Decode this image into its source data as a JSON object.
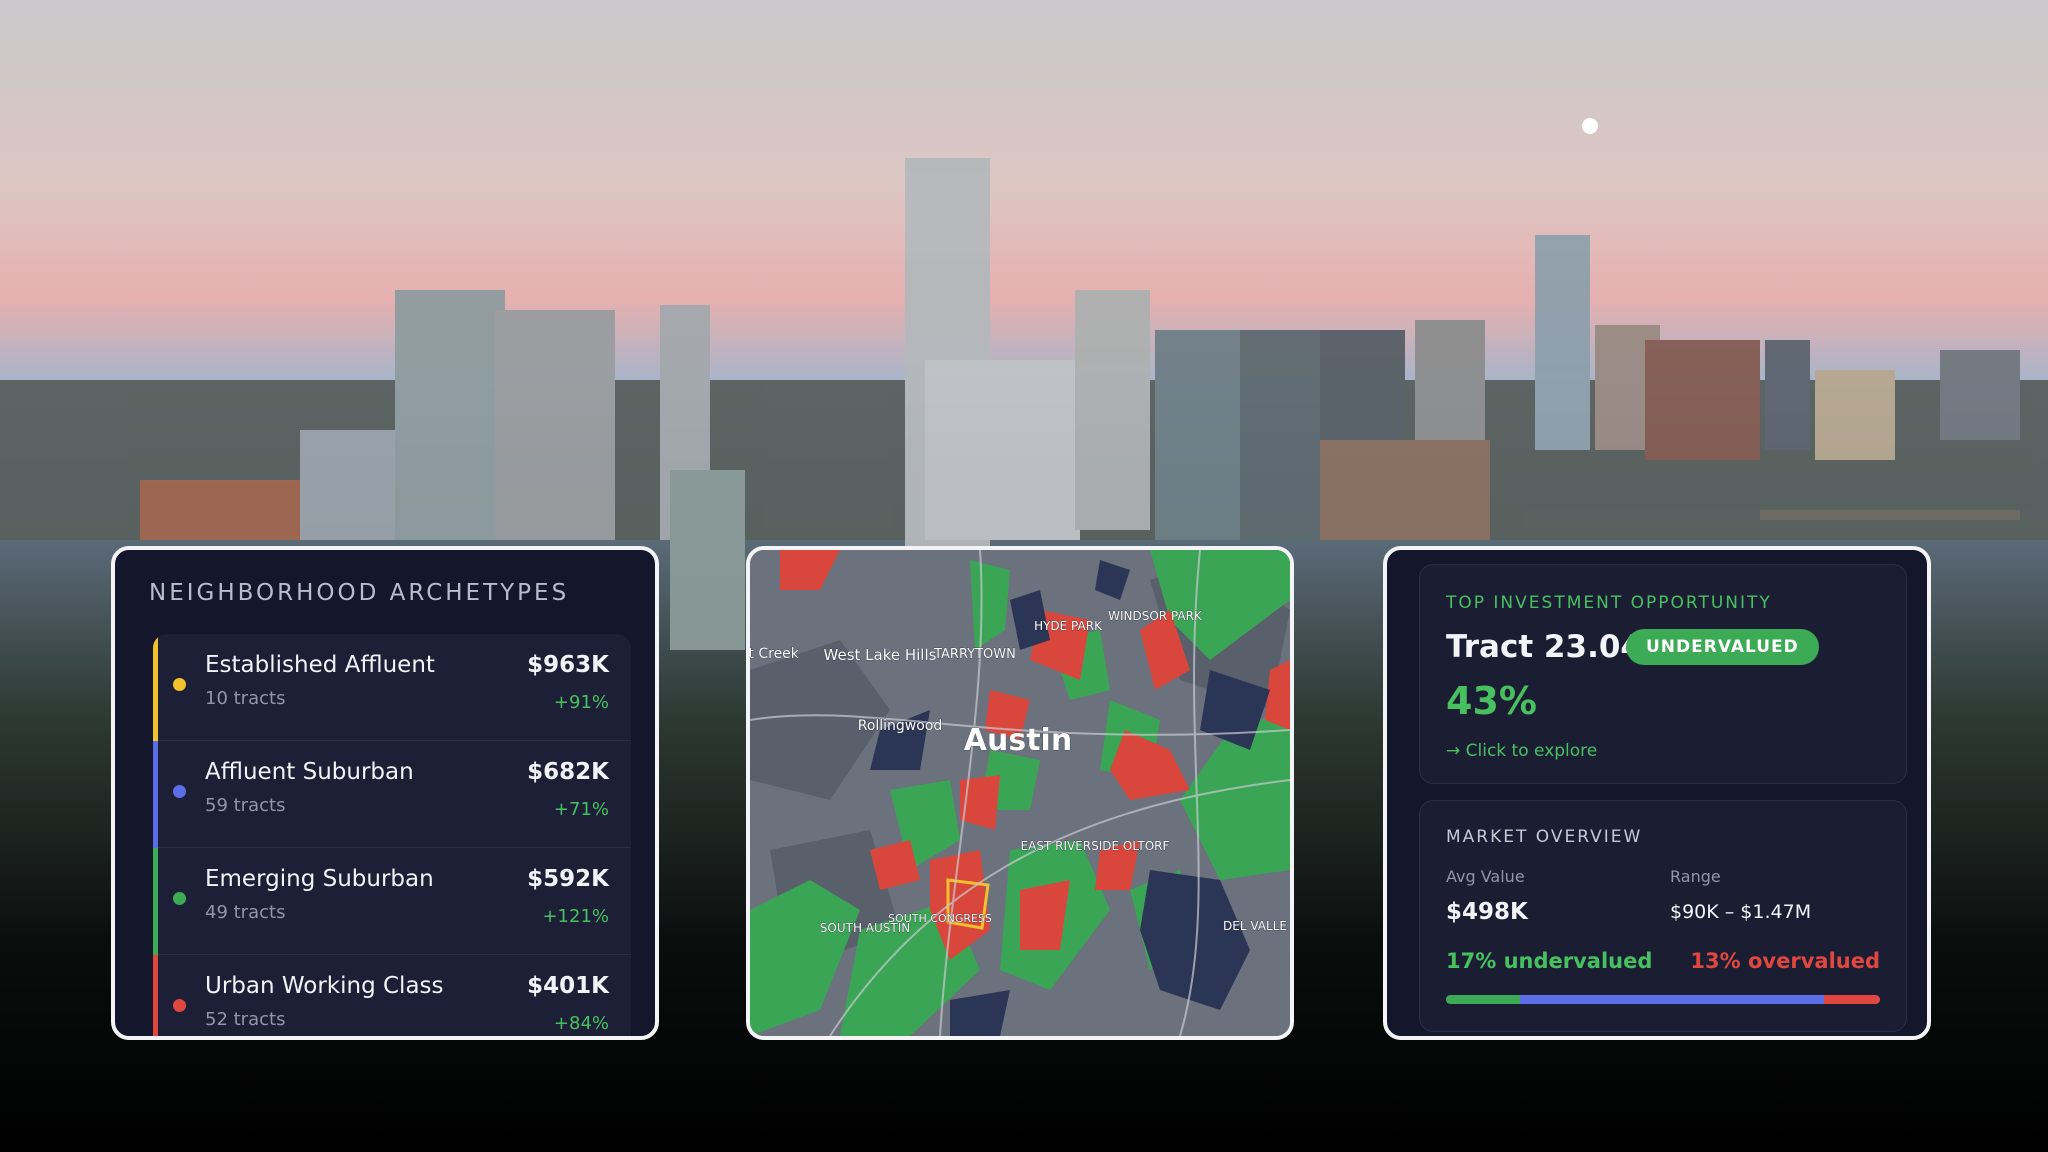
{
  "archetypes": {
    "title": "NEIGHBORHOOD ARCHETYPES",
    "items": [
      {
        "name": "Established Affluent",
        "tracts": "10 tracts",
        "value": "$963K",
        "change": "+91%",
        "color": "#f2c12e"
      },
      {
        "name": "Affluent Suburban",
        "tracts": "59 tracts",
        "value": "$682K",
        "change": "+71%",
        "color": "#5b6ee8"
      },
      {
        "name": "Emerging Suburban",
        "tracts": "49 tracts",
        "value": "$592K",
        "change": "+121%",
        "color": "#3daa55"
      },
      {
        "name": "Urban Working Class",
        "tracts": "52 tracts",
        "value": "$401K",
        "change": "+84%",
        "color": "#e0473e"
      }
    ]
  },
  "map": {
    "labels": [
      "Austin",
      "West\nLake Hills",
      "TARRYTOWN",
      "Rollingwood",
      "HYDE PARK",
      "WINDSOR PARK",
      "EAST RIVERSIDE\nOLTORF",
      "SOUTH AUSTIN",
      "SOUTH\nCONGRESS",
      "DEL VALLE",
      "st Creek"
    ]
  },
  "opportunity": {
    "heading": "TOP INVESTMENT OPPORTUNITY",
    "tract": "Tract 23.04",
    "badge": "UNDERVALUED",
    "percent": "43%",
    "link": "→ Click to explore"
  },
  "market": {
    "heading": "MARKET OVERVIEW",
    "avg_label": "Avg Value",
    "avg_value": "$498K",
    "range_label": "Range",
    "range_value": "$90K – $1.47M",
    "undervalued": 17,
    "undervalued_label": "17% undervalued",
    "overvalued": 13,
    "overvalued_label": "13% overvalued"
  }
}
